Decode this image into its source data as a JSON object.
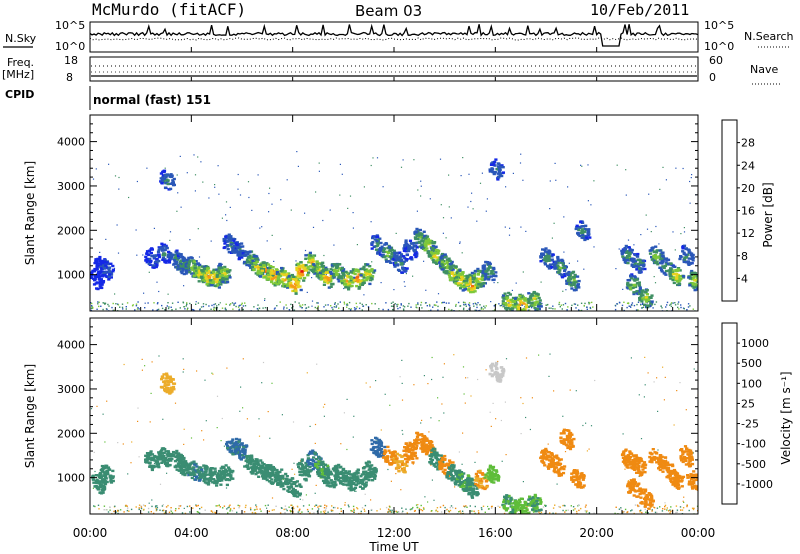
{
  "header": {
    "station": "McMurdo (fitACF)",
    "beam": "Beam 03",
    "date": "10/Feb/2011"
  },
  "top_panels": {
    "nsky_label": "N.Sky",
    "nsearch_label": "N.Search",
    "nsky_ticks": [
      "10^5",
      "10^0"
    ],
    "nsearch_ticks": [
      "10^5",
      "10^0"
    ],
    "freq_label": "Freq.",
    "freq_unit": "[MHz]",
    "freq_ticks": [
      "18",
      "8"
    ],
    "nave_label": "Nave",
    "nave_ticks": [
      "60",
      "0"
    ],
    "cpid_label": "CPID",
    "cpid_value": "normal (fast) 151"
  },
  "chart_data": [
    {
      "type": "heatmap",
      "name": "power",
      "ylabel": "Slant Range [km]",
      "ylim": [
        180,
        4600
      ],
      "yticks": [
        "1000",
        "2000",
        "3000",
        "4000"
      ],
      "colorbar_label": "Power [dB]",
      "colorbar_ticks": [
        "4",
        "8",
        "12",
        "16",
        "20",
        "24",
        "28"
      ],
      "colorbar_colors": [
        "#1428e6",
        "#2a57b8",
        "#3f8f63",
        "#7ec83a",
        "#e8d21e",
        "#f59a16",
        "#f26a10",
        "#e01010"
      ],
      "blobs": [
        [
          0.2,
          900,
          2
        ],
        [
          0.4,
          1200,
          4
        ],
        [
          0.6,
          1150,
          6
        ],
        [
          2.4,
          1400,
          6
        ],
        [
          2.9,
          1500,
          8
        ],
        [
          3.0,
          3150,
          10
        ],
        [
          3.4,
          1350,
          10
        ],
        [
          3.6,
          1250,
          12
        ],
        [
          4.0,
          1200,
          16
        ],
        [
          4.3,
          1050,
          20
        ],
        [
          4.6,
          1000,
          24
        ],
        [
          4.9,
          950,
          22
        ],
        [
          5.2,
          1050,
          18
        ],
        [
          5.5,
          1700,
          10
        ],
        [
          5.8,
          1600,
          8
        ],
        [
          6.3,
          1350,
          14
        ],
        [
          6.6,
          1200,
          20
        ],
        [
          6.9,
          1100,
          24
        ],
        [
          7.2,
          1000,
          26
        ],
        [
          7.6,
          950,
          22
        ],
        [
          8.0,
          800,
          26
        ],
        [
          8.3,
          1100,
          28
        ],
        [
          8.7,
          1300,
          22
        ],
        [
          9.0,
          1150,
          18
        ],
        [
          9.3,
          950,
          24
        ],
        [
          9.7,
          1100,
          16
        ],
        [
          10.1,
          900,
          22
        ],
        [
          10.5,
          950,
          26
        ],
        [
          10.9,
          1050,
          20
        ],
        [
          11.3,
          1700,
          10
        ],
        [
          11.7,
          1500,
          14
        ],
        [
          12.2,
          1300,
          10
        ],
        [
          12.6,
          1600,
          8
        ],
        [
          13.0,
          1850,
          14
        ],
        [
          13.3,
          1700,
          18
        ],
        [
          13.6,
          1450,
          20
        ],
        [
          14.0,
          1250,
          16
        ],
        [
          14.3,
          1050,
          20
        ],
        [
          14.6,
          900,
          22
        ],
        [
          15.0,
          800,
          26
        ],
        [
          15.3,
          950,
          18
        ],
        [
          15.7,
          1100,
          12
        ],
        [
          16.0,
          3400,
          8
        ],
        [
          16.5,
          400,
          20
        ],
        [
          17.0,
          350,
          24
        ],
        [
          17.5,
          450,
          18
        ],
        [
          18.0,
          1400,
          10
        ],
        [
          18.5,
          1200,
          12
        ],
        [
          19.0,
          900,
          14
        ],
        [
          19.4,
          2000,
          10
        ],
        [
          21.2,
          1450,
          12
        ],
        [
          21.6,
          1300,
          10
        ],
        [
          21.4,
          800,
          16
        ],
        [
          21.9,
          500,
          18
        ],
        [
          22.3,
          1450,
          14
        ],
        [
          22.7,
          1200,
          12
        ],
        [
          23.1,
          1000,
          20
        ],
        [
          23.5,
          1450,
          10
        ],
        [
          23.8,
          900,
          18
        ]
      ]
    },
    {
      "type": "heatmap",
      "name": "velocity",
      "ylabel": "Slant Range [km]",
      "ylim": [
        180,
        4600
      ],
      "yticks": [
        "1000",
        "2000",
        "3000",
        "4000"
      ],
      "colorbar_label": "Velocity [m s⁻¹]",
      "colorbar_ticks": [
        "1000",
        "500",
        "100",
        "25",
        "-25",
        "-100",
        "-500",
        "-1000"
      ],
      "colorbar_colors": [
        "#1a3bb5",
        "#2e6aa8",
        "#3a8d72",
        "#5fbd3a",
        "#c8c8c8",
        "#ecac2a",
        "#ef8a12",
        "#ec5a12",
        "#e01010"
      ],
      "blobs": [
        [
          0.3,
          900,
          300
        ],
        [
          0.6,
          1100,
          200
        ],
        [
          2.4,
          1400,
          300
        ],
        [
          2.9,
          1500,
          300
        ],
        [
          3.0,
          3150,
          -50
        ],
        [
          3.4,
          1400,
          400
        ],
        [
          3.7,
          1250,
          400
        ],
        [
          4.1,
          1150,
          500
        ],
        [
          4.5,
          1100,
          400
        ],
        [
          4.9,
          1050,
          400
        ],
        [
          5.3,
          1100,
          300
        ],
        [
          5.6,
          1750,
          600
        ],
        [
          5.9,
          1650,
          600
        ],
        [
          6.3,
          1350,
          300
        ],
        [
          6.7,
          1200,
          400
        ],
        [
          7.1,
          1100,
          300
        ],
        [
          7.5,
          1000,
          400
        ],
        [
          8.0,
          800,
          300
        ],
        [
          8.4,
          1200,
          200
        ],
        [
          8.8,
          1400,
          600
        ],
        [
          9.1,
          1200,
          100
        ],
        [
          9.4,
          1000,
          300
        ],
        [
          9.8,
          1100,
          150
        ],
        [
          10.2,
          950,
          300
        ],
        [
          10.6,
          1000,
          200
        ],
        [
          11.0,
          1150,
          300
        ],
        [
          11.3,
          1700,
          800
        ],
        [
          11.8,
          1500,
          -200
        ],
        [
          12.2,
          1350,
          -100
        ],
        [
          12.6,
          1600,
          -200
        ],
        [
          13.0,
          1850,
          -250
        ],
        [
          13.3,
          1700,
          -300
        ],
        [
          13.6,
          1450,
          300
        ],
        [
          14.0,
          1300,
          -200
        ],
        [
          14.3,
          1100,
          200
        ],
        [
          14.7,
          950,
          100
        ],
        [
          15.0,
          800,
          300
        ],
        [
          15.4,
          950,
          -100
        ],
        [
          15.8,
          1100,
          50
        ],
        [
          16.0,
          3400,
          20
        ],
        [
          16.5,
          420,
          100
        ],
        [
          17.0,
          350,
          50
        ],
        [
          17.5,
          450,
          100
        ],
        [
          18.0,
          1450,
          -250
        ],
        [
          18.4,
          1300,
          -200
        ],
        [
          18.8,
          1900,
          -300
        ],
        [
          19.2,
          1000,
          -200
        ],
        [
          21.2,
          1450,
          -250
        ],
        [
          21.6,
          1300,
          -300
        ],
        [
          21.4,
          800,
          -300
        ],
        [
          21.9,
          550,
          -250
        ],
        [
          22.3,
          1450,
          -200
        ],
        [
          22.7,
          1250,
          -300
        ],
        [
          23.1,
          1000,
          -250
        ],
        [
          23.5,
          1500,
          -200
        ],
        [
          23.8,
          950,
          -300
        ]
      ]
    }
  ],
  "time_axis": {
    "ticks": [
      "00:00",
      "04:00",
      "08:00",
      "12:00",
      "16:00",
      "20:00",
      "00:00"
    ],
    "label": "Time UT"
  }
}
